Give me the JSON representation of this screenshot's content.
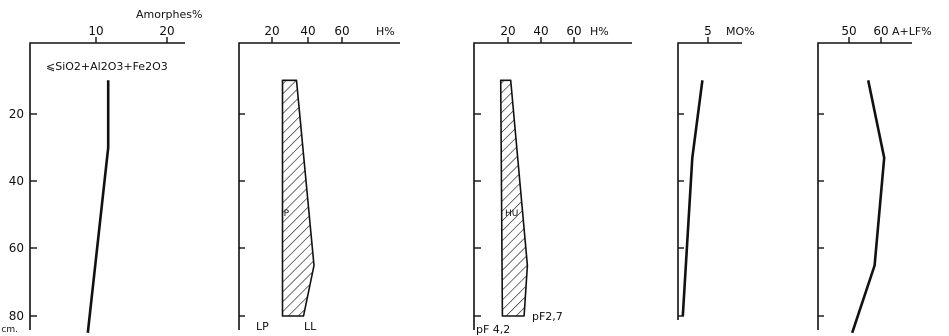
{
  "chart_data": {
    "type": "line",
    "depth_axis": {
      "unit_label": "cm.",
      "ticks": [
        20,
        40,
        60,
        80
      ],
      "range": [
        0,
        81
      ],
      "inverted": true
    },
    "panels": [
      {
        "id": "amorphes",
        "kind": "line",
        "unit_label": "Amorphes%",
        "annotation": "⩽SiO2+Al2O3+Fe2O3",
        "x_ticks": [
          10,
          20
        ],
        "x_range": [
          0,
          22
        ],
        "points": [
          [
            11.5,
            10
          ],
          [
            11.5,
            30
          ],
          [
            8.5,
            85
          ]
        ]
      },
      {
        "id": "plasticity",
        "kind": "band",
        "unit_label": "H%",
        "x_ticks": [
          20,
          40,
          60
        ],
        "x_range": [
          8,
          75
        ],
        "left_label": "LP",
        "right_label": "LL",
        "band_label": "IP",
        "left_edge": [
          [
            26,
            10
          ],
          [
            26,
            80
          ]
        ],
        "right_edge": [
          [
            34,
            10
          ],
          [
            44,
            65
          ],
          [
            38,
            80
          ]
        ]
      },
      {
        "id": "water",
        "kind": "band",
        "unit_label": "H%",
        "x_ticks": [
          20,
          40,
          60
        ],
        "x_range": [
          8,
          75
        ],
        "left_label": "pF 4,2",
        "right_label": "pF2,7",
        "band_label": "HU",
        "left_edge": [
          [
            16,
            10
          ],
          [
            17,
            80
          ]
        ],
        "right_edge": [
          [
            22,
            10
          ],
          [
            32,
            65
          ],
          [
            30,
            80
          ]
        ]
      },
      {
        "id": "mo",
        "kind": "line",
        "unit_label": "MO%",
        "x_ticks": [
          5
        ],
        "x_range": [
          0,
          10
        ],
        "points": [
          [
            4,
            10
          ],
          [
            2.2,
            33
          ],
          [
            0.5,
            80
          ]
        ]
      },
      {
        "id": "alf",
        "kind": "line",
        "unit_label": "A+LF%",
        "x_ticks": [
          50,
          60
        ],
        "x_range": [
          38,
          80
        ],
        "points": [
          [
            56,
            10
          ],
          [
            61,
            33
          ],
          [
            58,
            65
          ],
          [
            51,
            85
          ]
        ]
      }
    ]
  }
}
